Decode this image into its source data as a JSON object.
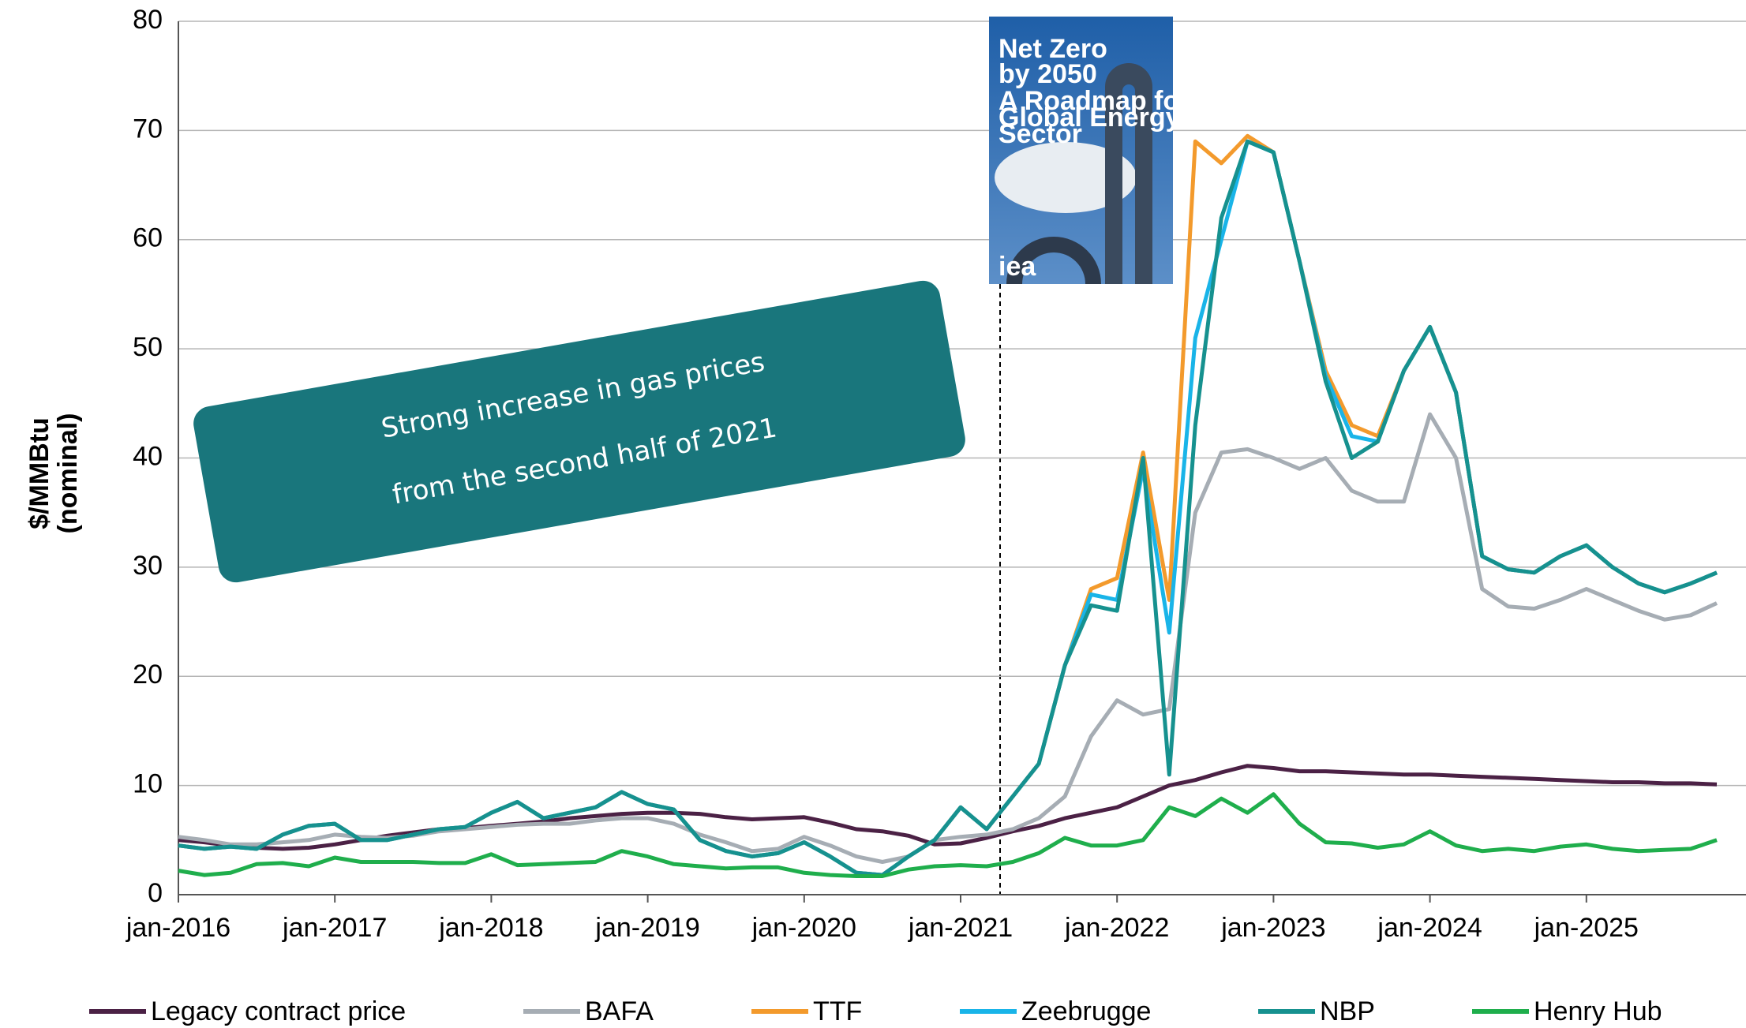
{
  "chart_data": {
    "type": "line",
    "ylabel": [
      "$/MMBtu",
      "(nominal)"
    ],
    "annotation": [
      "Strong increase in gas prices",
      "from the second half of 2021"
    ],
    "cover": {
      "title": [
        "Net Zero",
        "by 2050"
      ],
      "subtitle": [
        "A Roadmap for the",
        "Global Energy",
        "Sector"
      ],
      "logo": "iea"
    },
    "categories": [
      "jan-2016",
      null,
      null,
      null,
      null,
      null,
      "jan-2017",
      null,
      null,
      null,
      null,
      null,
      "jan-2018",
      null,
      null,
      null,
      null,
      null,
      "jan-2019",
      null,
      null,
      null,
      null,
      null,
      "jan-2020",
      null,
      null,
      null,
      null,
      null,
      "jan-2021",
      null,
      null,
      null,
      null,
      null,
      "jan-2022",
      null,
      null,
      null,
      null,
      null,
      "jan-2023",
      null,
      null,
      null,
      null,
      null,
      "jan-2024",
      null,
      null,
      null,
      null,
      null,
      "jan-2025",
      null,
      null,
      null,
      null,
      null
    ],
    "ylim": [
      0,
      80
    ],
    "yticks": [
      0,
      10,
      20,
      30,
      40,
      50,
      60,
      70,
      80
    ],
    "grid": true,
    "series": [
      {
        "name": "Legacy contract price",
        "color": "#4b2145",
        "values": [
          5,
          4.8,
          4.5,
          4.3,
          4.2,
          4.3,
          4.6,
          5,
          5.4,
          5.7,
          6,
          6.1,
          6.3,
          6.5,
          6.7,
          7,
          7.2,
          7.4,
          7.5,
          7.5,
          7.4,
          7.1,
          6.9,
          7,
          7.1,
          6.6,
          6,
          5.8,
          5.4,
          4.6,
          4.7,
          5.2,
          5.8,
          6.3,
          7,
          7.5,
          8,
          9,
          10,
          10.5,
          11.2,
          11.8,
          11.6,
          11.3,
          11.3,
          11.2,
          11.1,
          11,
          11,
          10.9,
          10.8,
          10.7,
          10.6,
          10.5,
          10.4,
          10.3,
          10.3,
          10.2,
          10.2,
          10.1
        ]
      },
      {
        "name": "BAFA",
        "color": "#a6adb4",
        "values": [
          5.3,
          5,
          4.6,
          4.6,
          4.8,
          5,
          5.5,
          5.3,
          5.2,
          5.4,
          5.8,
          6,
          6.2,
          6.4,
          6.5,
          6.5,
          6.8,
          7,
          7,
          6.5,
          5.5,
          4.8,
          4,
          4.2,
          5.3,
          4.5,
          3.5,
          3,
          3.5,
          5,
          5.3,
          5.5,
          6,
          7,
          9,
          14.5,
          17.8,
          16.5,
          17,
          35,
          40.5,
          40.8,
          40,
          39,
          40,
          37,
          36,
          36,
          44,
          40,
          28,
          26.4,
          26.2,
          27,
          28,
          27,
          26,
          25.2,
          25.6,
          26.7
        ]
      },
      {
        "name": "TTF",
        "color": "#f39a2c",
        "values": [
          4.5,
          4.2,
          4.4,
          4.2,
          5.5,
          6.3,
          6.5,
          5,
          5,
          5.5,
          6,
          6.2,
          7.5,
          8.5,
          7,
          7.5,
          8,
          9.4,
          8.3,
          7.8,
          5,
          4,
          3.5,
          3.8,
          4.8,
          3.5,
          2,
          1.8,
          3.5,
          5,
          8,
          6,
          9,
          12,
          21,
          28,
          29,
          40.5,
          27,
          69,
          67,
          69.5,
          68,
          58,
          48,
          43,
          42,
          48,
          52,
          46,
          31,
          29.8,
          29.5,
          31,
          32,
          30,
          28.5,
          27.7,
          28.5,
          29.5
        ]
      },
      {
        "name": "Zeebrugge",
        "color": "#19b4e8",
        "values": [
          4.5,
          4.2,
          4.4,
          4.2,
          5.5,
          6.3,
          6.5,
          5,
          5,
          5.5,
          6,
          6.2,
          7.5,
          8.5,
          7,
          7.5,
          8,
          9.4,
          8.3,
          7.8,
          5,
          4,
          3.5,
          3.8,
          4.8,
          3.5,
          2,
          1.8,
          3.5,
          5,
          8,
          6,
          9,
          12,
          21,
          27.5,
          27,
          39,
          24,
          51,
          60,
          69,
          68,
          58,
          47.5,
          42,
          41.5,
          48,
          52,
          46,
          31,
          29.8,
          29.5,
          31,
          32,
          30,
          28.5,
          27.7,
          28.5,
          29.5
        ]
      },
      {
        "name": "NBP",
        "color": "#16918f",
        "values": [
          4.5,
          4.2,
          4.4,
          4.2,
          5.5,
          6.3,
          6.5,
          5,
          5,
          5.5,
          6,
          6.2,
          7.5,
          8.5,
          7,
          7.5,
          8,
          9.4,
          8.3,
          7.8,
          5,
          4,
          3.5,
          3.8,
          4.8,
          3.5,
          2,
          1.8,
          3.5,
          5,
          8,
          6,
          9,
          12,
          21,
          26.5,
          26,
          40,
          11,
          43,
          62,
          69,
          68,
          58,
          47,
          40,
          41.5,
          48,
          52,
          46,
          31,
          29.8,
          29.5,
          31,
          32,
          30,
          28.5,
          27.7,
          28.5,
          29.5
        ]
      },
      {
        "name": "Henry Hub",
        "color": "#1fae4c",
        "values": [
          2.2,
          1.8,
          2,
          2.8,
          2.9,
          2.6,
          3.4,
          3,
          3,
          3,
          2.9,
          2.9,
          3.7,
          2.7,
          2.8,
          2.9,
          3,
          4,
          3.5,
          2.8,
          2.6,
          2.4,
          2.5,
          2.5,
          2,
          1.8,
          1.7,
          1.7,
          2.3,
          2.6,
          2.7,
          2.6,
          3,
          3.8,
          5.2,
          4.5,
          4.5,
          5,
          8,
          7.2,
          8.8,
          7.5,
          9.2,
          6.5,
          4.8,
          4.7,
          4.3,
          4.6,
          5.8,
          4.5,
          4,
          4.2,
          4,
          4.4,
          4.6,
          4.2,
          4,
          4.1,
          4.2,
          5
        ]
      }
    ]
  }
}
